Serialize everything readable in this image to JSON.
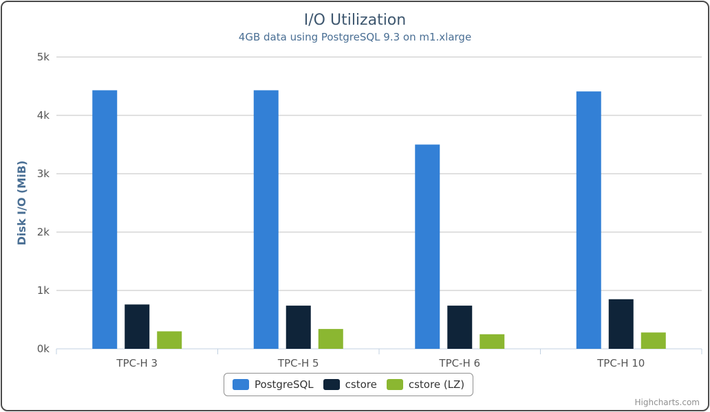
{
  "chart_data": {
    "type": "bar",
    "title": "I/O Utilization",
    "subtitle": "4GB data using PostgreSQL 9.3 on m1.xlarge",
    "ylabel": "Disk I/O (MiB)",
    "xlabel": "",
    "ylim": [
      0,
      5000
    ],
    "yticks": [
      0,
      1000,
      2000,
      3000,
      4000,
      5000
    ],
    "ytick_labels": [
      "0k",
      "1k",
      "2k",
      "3k",
      "4k",
      "5k"
    ],
    "categories": [
      "TPC-H 3",
      "TPC-H 5",
      "TPC-H 6",
      "TPC-H 10"
    ],
    "series": [
      {
        "name": "PostgreSQL",
        "color": "#3380d6",
        "values": [
          4430,
          4430,
          3500,
          4410
        ]
      },
      {
        "name": "cstore",
        "color": "#0f2439",
        "values": [
          760,
          740,
          740,
          850
        ]
      },
      {
        "name": "cstore (LZ)",
        "color": "#8bb731",
        "values": [
          300,
          340,
          250,
          280
        ]
      }
    ],
    "grid": true,
    "legend_position": "bottom-center"
  },
  "credits": "Highcharts.com"
}
